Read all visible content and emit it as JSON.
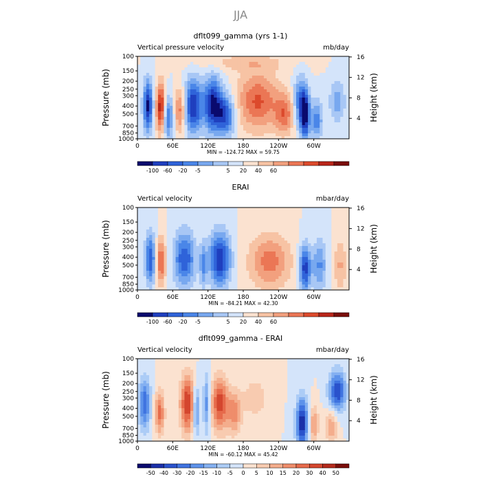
{
  "figure": {
    "title": "JJA"
  },
  "colors": {
    "model_scale": [
      "#0a0a6e",
      "#1f3fbf",
      "#2f63d9",
      "#4a86e8",
      "#78a8ef",
      "#a8c7f5",
      "#d4e4fa",
      "#fbe2d0",
      "#f7c3a4",
      "#f2a07e",
      "#eb7655",
      "#dc4a2c",
      "#b9261a",
      "#7a0e0a"
    ],
    "diff_scale": [
      "#0a0a6e",
      "#1a2fa8",
      "#2a52cc",
      "#3f73e0",
      "#5d92ea",
      "#84b0f1",
      "#acccf6",
      "#d4e4fa",
      "#fbe2d0",
      "#f8cbb0",
      "#f4ad8c",
      "#ef8d6b",
      "#e66a4b",
      "#d4462e",
      "#b42a1c",
      "#7a0e0a"
    ]
  },
  "chart_data": [
    {
      "type": "heatmap",
      "title": "dflt099_gamma (yrs 1-1)",
      "left_label": "Vertical pressure velocity",
      "units": "mb/day",
      "ylabel": "Pressure (mb)",
      "right_axis_label": "Height (km)",
      "x_ticks": [
        "0",
        "60E",
        "120E",
        "180",
        "120W",
        "60W"
      ],
      "x_tick_values": [
        0,
        60,
        120,
        180,
        240,
        300
      ],
      "x_range": [
        0,
        360
      ],
      "y_ticks": [
        "100",
        "150",
        "200",
        "250",
        "300",
        "400",
        "500",
        "700",
        "850",
        "1000"
      ],
      "y_tick_values": [
        100,
        150,
        200,
        250,
        300,
        400,
        500,
        700,
        850,
        1000
      ],
      "y_range": [
        100,
        1000
      ],
      "y_scale": "log",
      "right_ticks": [
        "4",
        "8",
        "12",
        "16"
      ],
      "right_tick_values": [
        4,
        8,
        12,
        16
      ],
      "stats": "MIN = -124.72   MAX =  59.75",
      "colorbar_labels": [
        "-100",
        "-60",
        "-20",
        "-5",
        "5",
        "20",
        "40",
        "60"
      ],
      "features": [
        {
          "lon": 18,
          "p": 400,
          "w": 8,
          "h": 0.7,
          "v": -0.9
        },
        {
          "lon": 40,
          "p": 420,
          "w": 8,
          "h": 0.7,
          "v": 0.85
        },
        {
          "lon": 52,
          "p": 550,
          "w": 9,
          "h": 0.6,
          "v": -0.6
        },
        {
          "lon": 72,
          "p": 450,
          "w": 9,
          "h": 0.6,
          "v": 0.5
        },
        {
          "lon": 95,
          "p": 400,
          "w": 14,
          "h": 0.75,
          "v": -0.85
        },
        {
          "lon": 128,
          "p": 380,
          "w": 16,
          "h": 0.75,
          "v": -0.9
        },
        {
          "lon": 150,
          "p": 520,
          "w": 16,
          "h": 0.55,
          "v": -0.7
        },
        {
          "lon": 205,
          "p": 350,
          "w": 35,
          "h": 0.8,
          "v": 0.6
        },
        {
          "lon": 250,
          "p": 500,
          "w": 16,
          "h": 0.55,
          "v": 0.5
        },
        {
          "lon": 275,
          "p": 350,
          "w": 10,
          "h": 0.7,
          "v": -0.5
        },
        {
          "lon": 285,
          "p": 500,
          "w": 8,
          "h": 0.7,
          "v": -1.0
        },
        {
          "lon": 305,
          "p": 600,
          "w": 10,
          "h": 0.55,
          "v": -0.5
        },
        {
          "lon": 340,
          "p": 350,
          "w": 14,
          "h": 0.6,
          "v": -0.35
        },
        {
          "lon": 180,
          "p": 120,
          "w": 80,
          "h": 0.25,
          "v": 0.2
        }
      ]
    },
    {
      "type": "heatmap",
      "title": "ERAI",
      "left_label": "Vertical velocity",
      "units": "mbar/day",
      "ylabel": "Pressure (mb)",
      "right_axis_label": "Height (km)",
      "x_ticks": [
        "0",
        "60E",
        "120E",
        "180",
        "120W",
        "60W"
      ],
      "x_tick_values": [
        0,
        60,
        120,
        180,
        240,
        300
      ],
      "x_range": [
        0,
        360
      ],
      "y_ticks": [
        "100",
        "150",
        "200",
        "250",
        "300",
        "400",
        "500",
        "700",
        "850",
        "1000"
      ],
      "y_tick_values": [
        100,
        150,
        200,
        250,
        300,
        400,
        500,
        700,
        850,
        1000
      ],
      "y_range": [
        100,
        1000
      ],
      "y_scale": "log",
      "right_ticks": [
        "4",
        "8",
        "12",
        "16"
      ],
      "right_tick_values": [
        4,
        8,
        12,
        16
      ],
      "stats": "MIN = -84.21   MAX =  42.30",
      "colorbar_labels": [
        "-100",
        "-60",
        "-20",
        "-5",
        "5",
        "20",
        "40",
        "60"
      ],
      "features": [
        {
          "lon": 22,
          "p": 420,
          "w": 9,
          "h": 0.7,
          "v": -0.7
        },
        {
          "lon": 40,
          "p": 450,
          "w": 8,
          "h": 0.65,
          "v": 0.6
        },
        {
          "lon": 80,
          "p": 420,
          "w": 18,
          "h": 0.75,
          "v": -0.7
        },
        {
          "lon": 140,
          "p": 420,
          "w": 18,
          "h": 0.75,
          "v": -0.85
        },
        {
          "lon": 112,
          "p": 500,
          "w": 6,
          "h": 0.6,
          "v": -0.4
        },
        {
          "lon": 225,
          "p": 450,
          "w": 35,
          "h": 0.75,
          "v": 0.5
        },
        {
          "lon": 285,
          "p": 550,
          "w": 10,
          "h": 0.65,
          "v": -0.8
        },
        {
          "lon": 310,
          "p": 500,
          "w": 12,
          "h": 0.7,
          "v": -0.45
        },
        {
          "lon": 345,
          "p": 500,
          "w": 12,
          "h": 0.7,
          "v": 0.3
        }
      ]
    },
    {
      "type": "heatmap",
      "title": "dflt099_gamma - ERAI",
      "left_label": "Vertical velocity",
      "units": "mbar/day",
      "ylabel": "Pressure (mb)",
      "right_axis_label": "Height (km)",
      "x_ticks": [
        "0",
        "60E",
        "120E",
        "180",
        "120W",
        "60W"
      ],
      "x_tick_values": [
        0,
        60,
        120,
        180,
        240,
        300
      ],
      "x_range": [
        0,
        360
      ],
      "y_ticks": [
        "100",
        "150",
        "200",
        "250",
        "300",
        "400",
        "500",
        "700",
        "850",
        "1000"
      ],
      "y_tick_values": [
        100,
        150,
        200,
        250,
        300,
        400,
        500,
        700,
        850,
        1000
      ],
      "y_range": [
        100,
        1000
      ],
      "y_scale": "log",
      "right_ticks": [
        "4",
        "8",
        "12",
        "16"
      ],
      "right_tick_values": [
        4,
        8,
        12,
        16
      ],
      "stats": "MIN = -60.12   MAX =  45.42",
      "colorbar_labels": [
        "-50",
        "-40",
        "-30",
        "-20",
        "-15",
        "-10",
        "-5",
        "0",
        "5",
        "10",
        "15",
        "20",
        "30",
        "40",
        "50"
      ],
      "features": [
        {
          "lon": 12,
          "p": 350,
          "w": 10,
          "h": 0.7,
          "v": -0.6
        },
        {
          "lon": 38,
          "p": 450,
          "w": 8,
          "h": 0.6,
          "v": 0.55
        },
        {
          "lon": 85,
          "p": 350,
          "w": 12,
          "h": 0.8,
          "v": 0.75
        },
        {
          "lon": 100,
          "p": 420,
          "w": 6,
          "h": 0.7,
          "v": -0.5
        },
        {
          "lon": 118,
          "p": 350,
          "w": 6,
          "h": 0.8,
          "v": -0.45
        },
        {
          "lon": 140,
          "p": 350,
          "w": 14,
          "h": 0.75,
          "v": 0.7
        },
        {
          "lon": 165,
          "p": 450,
          "w": 12,
          "h": 0.6,
          "v": 0.45
        },
        {
          "lon": 200,
          "p": 300,
          "w": 20,
          "h": 0.5,
          "v": 0.25
        },
        {
          "lon": 280,
          "p": 600,
          "w": 10,
          "h": 0.7,
          "v": -0.85
        },
        {
          "lon": 300,
          "p": 620,
          "w": 8,
          "h": 0.5,
          "v": 0.4
        },
        {
          "lon": 340,
          "p": 250,
          "w": 14,
          "h": 0.55,
          "v": -0.75
        },
        {
          "lon": 330,
          "p": 650,
          "w": 10,
          "h": 0.5,
          "v": 0.35
        }
      ]
    }
  ]
}
